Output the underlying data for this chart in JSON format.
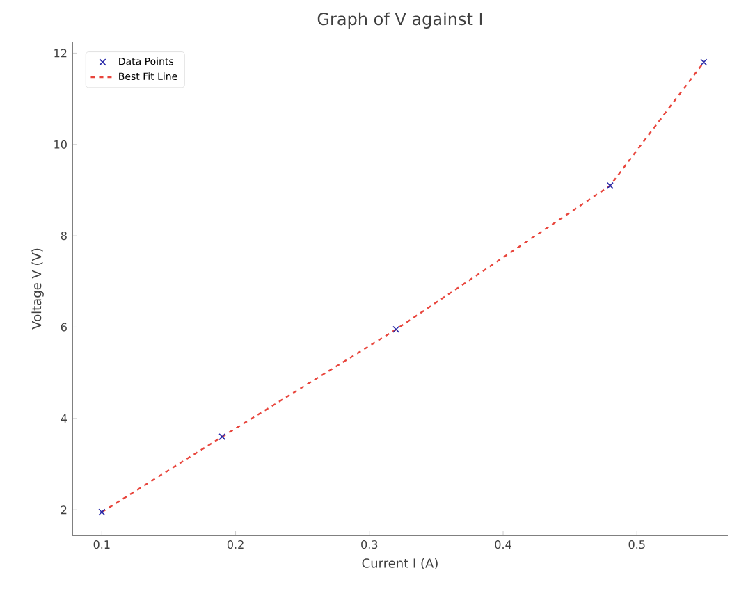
{
  "chart_data": {
    "type": "scatter",
    "title": "Graph of V against I",
    "xlabel": "Current I (A)",
    "ylabel": "Voltage V (V)",
    "series": [
      {
        "name": "Data Points",
        "color": "#2a2aa8",
        "marker": "cross",
        "x": [
          0.1,
          0.19,
          0.32,
          0.48,
          0.55
        ],
        "values": [
          1.95,
          3.6,
          5.95,
          9.1,
          11.8
        ]
      },
      {
        "name": "Best Fit Line",
        "type": "line",
        "color": "#e8453c",
        "line_style": "dashed",
        "x": [
          0.1,
          0.19,
          0.32,
          0.48,
          0.55
        ],
        "values": [
          1.95,
          3.6,
          5.95,
          9.1,
          11.8
        ]
      }
    ],
    "xlim": [
      0.078,
      0.568
    ],
    "ylim": [
      1.44,
      12.25
    ],
    "xticks": [
      0.1,
      0.2,
      0.3,
      0.4,
      0.5
    ],
    "yticks": [
      2,
      4,
      6,
      8,
      10,
      12
    ],
    "legend": "top left",
    "grid": false
  }
}
